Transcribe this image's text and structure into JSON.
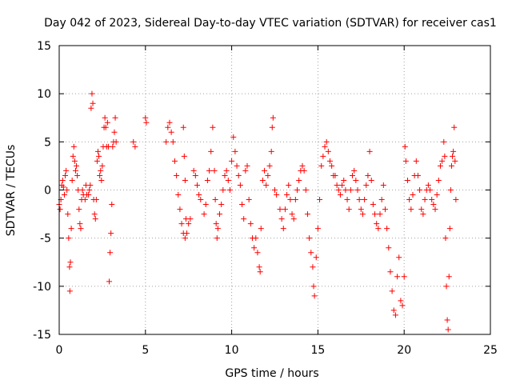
{
  "chart_data": {
    "type": "scatter",
    "title": "Day 042 of 2023, Sidereal Day-to-day VTEC variation (SDTVAR) for receiver cas1",
    "xlabel": "GPS time / hours",
    "ylabel": "SDTVAR / TECUs",
    "xlim": [
      0,
      25
    ],
    "ylim": [
      -15,
      15
    ],
    "x_ticks": [
      0,
      5,
      10,
      15,
      20,
      25
    ],
    "x_tick_labels": [
      "0",
      "5",
      "10",
      "15",
      "20",
      "25"
    ],
    "y_ticks": [
      -15,
      -10,
      -5,
      0,
      5,
      10,
      15
    ],
    "y_tick_labels": [
      "-15",
      "-10",
      "-5",
      "0",
      "5",
      "10",
      "15"
    ],
    "grid": true,
    "marker": "+",
    "series": [
      {
        "name": "SDTVAR cas1",
        "color": "#ff0000",
        "points": [
          [
            0.0,
            -1.5
          ],
          [
            0.05,
            -2.0
          ],
          [
            0.1,
            -1.0
          ],
          [
            0.15,
            0.5
          ],
          [
            0.2,
            1.0
          ],
          [
            0.25,
            0.3
          ],
          [
            0.3,
            -0.5
          ],
          [
            0.35,
            1.5
          ],
          [
            0.4,
            2.0
          ],
          [
            0.45,
            0.0
          ],
          [
            0.5,
            -2.5
          ],
          [
            0.55,
            -5.0
          ],
          [
            0.6,
            -8.0
          ],
          [
            0.62,
            -10.5
          ],
          [
            0.65,
            -7.5
          ],
          [
            0.7,
            -4.0
          ],
          [
            0.75,
            1.0
          ],
          [
            0.8,
            3.5
          ],
          [
            0.85,
            4.5
          ],
          [
            0.9,
            3.0
          ],
          [
            0.95,
            2.0
          ],
          [
            1.0,
            2.5
          ],
          [
            1.05,
            1.5
          ],
          [
            1.1,
            0.0
          ],
          [
            1.15,
            -2.0
          ],
          [
            1.2,
            -3.5
          ],
          [
            1.25,
            -4.0
          ],
          [
            1.3,
            -1.0
          ],
          [
            1.35,
            0.0
          ],
          [
            1.4,
            -0.5
          ],
          [
            1.5,
            -1.0
          ],
          [
            1.55,
            0.5
          ],
          [
            1.6,
            -0.5
          ],
          [
            1.7,
            -0.5
          ],
          [
            1.75,
            0.0
          ],
          [
            1.8,
            0.5
          ],
          [
            1.85,
            8.5
          ],
          [
            1.9,
            10.0
          ],
          [
            1.95,
            9.0
          ],
          [
            2.0,
            -1.0
          ],
          [
            2.05,
            -2.5
          ],
          [
            2.1,
            -3.0
          ],
          [
            2.15,
            -1.0
          ],
          [
            2.2,
            3.0
          ],
          [
            2.25,
            4.0
          ],
          [
            2.3,
            3.5
          ],
          [
            2.35,
            1.5
          ],
          [
            2.4,
            2.0
          ],
          [
            2.45,
            1.0
          ],
          [
            2.5,
            2.5
          ],
          [
            2.55,
            4.5
          ],
          [
            2.6,
            6.5
          ],
          [
            2.65,
            7.5
          ],
          [
            2.7,
            6.5
          ],
          [
            2.75,
            4.5
          ],
          [
            2.8,
            7.0
          ],
          [
            2.85,
            4.5
          ],
          [
            2.9,
            -9.5
          ],
          [
            2.95,
            -6.5
          ],
          [
            3.0,
            -4.5
          ],
          [
            3.05,
            -1.5
          ],
          [
            3.1,
            4.5
          ],
          [
            3.15,
            5.0
          ],
          [
            3.2,
            6.0
          ],
          [
            3.25,
            7.5
          ],
          [
            3.3,
            5.0
          ],
          [
            4.3,
            5.0
          ],
          [
            4.4,
            4.5
          ],
          [
            5.0,
            7.5
          ],
          [
            5.05,
            7.0
          ],
          [
            6.2,
            5.0
          ],
          [
            6.3,
            6.5
          ],
          [
            6.4,
            7.0
          ],
          [
            6.5,
            6.0
          ],
          [
            6.6,
            5.0
          ],
          [
            6.7,
            3.0
          ],
          [
            6.8,
            1.5
          ],
          [
            6.9,
            -0.5
          ],
          [
            7.0,
            -2.0
          ],
          [
            7.1,
            -3.5
          ],
          [
            7.2,
            -4.5
          ],
          [
            7.3,
            -5.0
          ],
          [
            7.4,
            -4.5
          ],
          [
            7.5,
            -3.5
          ],
          [
            7.6,
            -3.0
          ],
          [
            7.2,
            6.5
          ],
          [
            7.25,
            3.5
          ],
          [
            7.3,
            1.0
          ],
          [
            7.35,
            -3.0
          ],
          [
            7.8,
            2.0
          ],
          [
            7.9,
            1.5
          ],
          [
            8.0,
            0.5
          ],
          [
            8.1,
            -0.5
          ],
          [
            8.2,
            -1.0
          ],
          [
            8.4,
            -2.5
          ],
          [
            8.5,
            -1.5
          ],
          [
            8.6,
            1.0
          ],
          [
            8.7,
            2.0
          ],
          [
            8.8,
            4.0
          ],
          [
            8.9,
            6.5
          ],
          [
            9.0,
            2.0
          ],
          [
            9.05,
            -1.0
          ],
          [
            9.1,
            -3.5
          ],
          [
            9.15,
            -5.0
          ],
          [
            9.2,
            -4.0
          ],
          [
            9.3,
            -2.5
          ],
          [
            9.4,
            -1.5
          ],
          [
            9.5,
            0.0
          ],
          [
            9.6,
            1.5
          ],
          [
            9.7,
            2.0
          ],
          [
            9.8,
            1.0
          ],
          [
            9.9,
            0.0
          ],
          [
            10.0,
            3.0
          ],
          [
            10.1,
            5.5
          ],
          [
            10.2,
            4.0
          ],
          [
            10.3,
            2.5
          ],
          [
            10.4,
            1.5
          ],
          [
            10.5,
            0.5
          ],
          [
            10.6,
            -1.5
          ],
          [
            10.7,
            -3.0
          ],
          [
            10.8,
            2.0
          ],
          [
            10.9,
            2.5
          ],
          [
            11.0,
            -1.0
          ],
          [
            11.1,
            -3.5
          ],
          [
            11.2,
            -5.0
          ],
          [
            11.3,
            -6.0
          ],
          [
            11.4,
            -5.0
          ],
          [
            11.5,
            -6.5
          ],
          [
            11.6,
            -8.0
          ],
          [
            11.65,
            -8.5
          ],
          [
            11.7,
            -4.0
          ],
          [
            11.8,
            1.0
          ],
          [
            11.9,
            2.0
          ],
          [
            12.0,
            0.5
          ],
          [
            12.1,
            1.5
          ],
          [
            12.2,
            2.5
          ],
          [
            12.3,
            4.0
          ],
          [
            12.35,
            6.5
          ],
          [
            12.4,
            7.5
          ],
          [
            12.5,
            0.0
          ],
          [
            12.6,
            -0.5
          ],
          [
            12.8,
            -2.0
          ],
          [
            12.9,
            -3.0
          ],
          [
            13.0,
            -4.0
          ],
          [
            13.1,
            -2.0
          ],
          [
            13.2,
            -0.5
          ],
          [
            13.3,
            0.5
          ],
          [
            13.4,
            -1.0
          ],
          [
            13.5,
            -2.5
          ],
          [
            13.6,
            -3.0
          ],
          [
            13.7,
            -1.0
          ],
          [
            13.8,
            0.0
          ],
          [
            13.9,
            1.0
          ],
          [
            14.0,
            2.0
          ],
          [
            14.1,
            2.5
          ],
          [
            14.2,
            2.0
          ],
          [
            14.3,
            0.0
          ],
          [
            14.4,
            -2.5
          ],
          [
            14.5,
            -5.0
          ],
          [
            14.6,
            -6.5
          ],
          [
            14.7,
            -8.0
          ],
          [
            14.75,
            -10.0
          ],
          [
            14.8,
            -11.0
          ],
          [
            14.9,
            -7.0
          ],
          [
            15.0,
            -4.0
          ],
          [
            15.1,
            -1.0
          ],
          [
            15.2,
            2.5
          ],
          [
            15.3,
            3.5
          ],
          [
            15.4,
            4.5
          ],
          [
            15.5,
            5.0
          ],
          [
            15.6,
            4.0
          ],
          [
            15.7,
            3.0
          ],
          [
            15.8,
            2.5
          ],
          [
            15.9,
            1.5
          ],
          [
            16.0,
            1.5
          ],
          [
            16.1,
            0.5
          ],
          [
            16.2,
            0.0
          ],
          [
            16.3,
            -0.5
          ],
          [
            16.4,
            0.5
          ],
          [
            16.5,
            1.0
          ],
          [
            16.6,
            0.0
          ],
          [
            16.7,
            -1.0
          ],
          [
            16.8,
            -2.0
          ],
          [
            16.9,
            0.0
          ],
          [
            17.0,
            1.5
          ],
          [
            17.1,
            2.0
          ],
          [
            17.2,
            1.0
          ],
          [
            17.3,
            0.0
          ],
          [
            17.4,
            -1.0
          ],
          [
            17.5,
            -2.0
          ],
          [
            17.6,
            -2.5
          ],
          [
            17.7,
            -1.0
          ],
          [
            17.8,
            0.5
          ],
          [
            17.9,
            1.5
          ],
          [
            18.0,
            4.0
          ],
          [
            18.1,
            1.0
          ],
          [
            18.2,
            -1.5
          ],
          [
            18.3,
            -2.5
          ],
          [
            18.4,
            -3.5
          ],
          [
            18.5,
            -4.0
          ],
          [
            18.6,
            -2.5
          ],
          [
            18.7,
            -1.0
          ],
          [
            18.8,
            0.5
          ],
          [
            18.9,
            -2.0
          ],
          [
            19.0,
            -4.0
          ],
          [
            19.1,
            -6.0
          ],
          [
            19.2,
            -8.5
          ],
          [
            19.3,
            -10.5
          ],
          [
            19.4,
            -12.5
          ],
          [
            19.5,
            -13.0
          ],
          [
            19.6,
            -9.0
          ],
          [
            19.7,
            -7.0
          ],
          [
            19.8,
            -11.5
          ],
          [
            19.9,
            -12.0
          ],
          [
            20.0,
            -9.0
          ],
          [
            20.05,
            4.5
          ],
          [
            20.1,
            3.0
          ],
          [
            20.2,
            1.0
          ],
          [
            20.3,
            -1.0
          ],
          [
            20.4,
            -2.0
          ],
          [
            20.5,
            -0.5
          ],
          [
            20.6,
            1.5
          ],
          [
            20.7,
            3.0
          ],
          [
            20.8,
            1.5
          ],
          [
            20.9,
            0.0
          ],
          [
            21.0,
            -2.0
          ],
          [
            21.1,
            -2.5
          ],
          [
            21.2,
            -1.0
          ],
          [
            21.3,
            0.0
          ],
          [
            21.4,
            0.5
          ],
          [
            21.5,
            0.0
          ],
          [
            21.6,
            -1.0
          ],
          [
            21.7,
            -1.5
          ],
          [
            21.8,
            -2.0
          ],
          [
            21.9,
            -0.5
          ],
          [
            22.0,
            1.0
          ],
          [
            22.1,
            2.5
          ],
          [
            22.2,
            3.0
          ],
          [
            22.3,
            5.0
          ],
          [
            22.35,
            3.5
          ],
          [
            22.4,
            -5.0
          ],
          [
            22.45,
            -10.0
          ],
          [
            22.5,
            -13.5
          ],
          [
            22.55,
            -14.5
          ],
          [
            22.6,
            -9.0
          ],
          [
            22.65,
            -4.0
          ],
          [
            22.7,
            0.0
          ],
          [
            22.75,
            2.5
          ],
          [
            22.8,
            3.5
          ],
          [
            22.85,
            4.0
          ],
          [
            22.9,
            6.5
          ],
          [
            22.95,
            3.0
          ],
          [
            23.0,
            -1.0
          ]
        ]
      }
    ]
  }
}
